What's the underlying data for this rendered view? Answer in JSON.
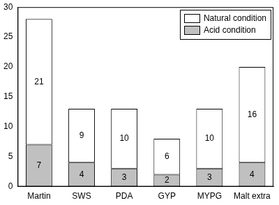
{
  "chart_data": {
    "type": "bar",
    "stacked": true,
    "categories": [
      "Martin",
      "SWS",
      "PDA",
      "GYP",
      "MYPG",
      "Malt extra"
    ],
    "series": [
      {
        "name": "Acid condition",
        "color": "#c0c0c0",
        "values": [
          7,
          4,
          3,
          2,
          3,
          4
        ]
      },
      {
        "name": "Natural condition",
        "color": "#ffffff",
        "values": [
          21,
          9,
          10,
          6,
          10,
          16
        ]
      }
    ],
    "ylim": [
      0,
      30
    ],
    "yticks": [
      0,
      5,
      10,
      15,
      20,
      25,
      30
    ],
    "grid": false,
    "legend": "upper right",
    "data_labels": true
  }
}
